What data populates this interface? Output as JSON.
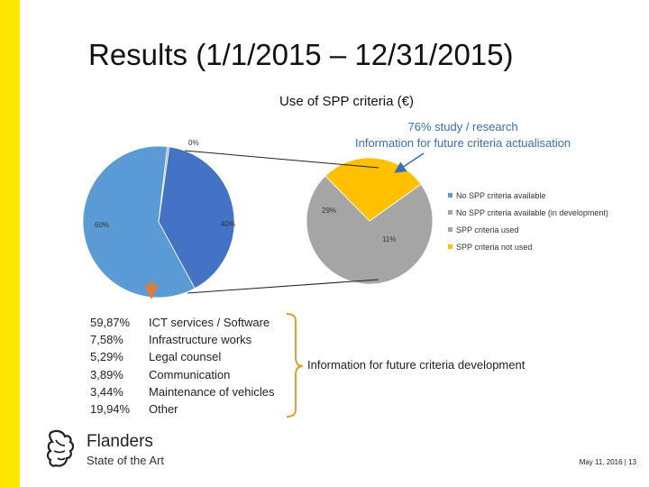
{
  "slide": {
    "title": "Results (1/1/2015 – 12/31/2015)",
    "footer": "May 11, 2016 | 13",
    "accent_color": "#ffe600"
  },
  "logo": {
    "name": "Flanders",
    "tagline": "State of the Art",
    "icon": "flanders-lion-icon"
  },
  "annotation": {
    "line1": "76% study / research",
    "line2": "Information for future criteria actualisation",
    "color": "#3b6fb3"
  },
  "breakdown": {
    "items": [
      {
        "percent": "59,87%",
        "label": "ICT services / Software"
      },
      {
        "percent": "7,58%",
        "label": "Infrastructure works"
      },
      {
        "percent": "5,29%",
        "label": "Legal counsel"
      },
      {
        "percent": "3,89%",
        "label": "Communication"
      },
      {
        "percent": "3,44%",
        "label": "Maintenance of vehicles"
      },
      {
        "percent": "19,94%",
        "label": "Other"
      }
    ],
    "note": "Information for future criteria development",
    "arrow_color": "#e07b39"
  },
  "chart_data": {
    "type": "pie",
    "title": "Use of SPP criteria (€)",
    "legend_position": "right",
    "main_pie": {
      "slices": [
        {
          "label": "60%",
          "value": 60,
          "color": "#5b9bd5"
        },
        {
          "label": "0%",
          "value": 0.4,
          "color": "#a6a6a6"
        },
        {
          "label": "40%",
          "value": 40,
          "color": "#4472c4"
        }
      ]
    },
    "sub_pie": {
      "slices": [
        {
          "label": "29%",
          "value": 29,
          "color": "#a5a5a5"
        },
        {
          "label": "11%",
          "value": 11,
          "color": "#ffc000"
        }
      ]
    },
    "legend": [
      {
        "label": "No SPP criteria available",
        "color": "#5b9bd5"
      },
      {
        "label": "No SPP criteria available (in development)",
        "color": "#a5a5a5"
      },
      {
        "label": "SPP criteria used",
        "color": "#a5a5a5"
      },
      {
        "label": "SPP criteria not used",
        "color": "#ffc000"
      }
    ]
  }
}
